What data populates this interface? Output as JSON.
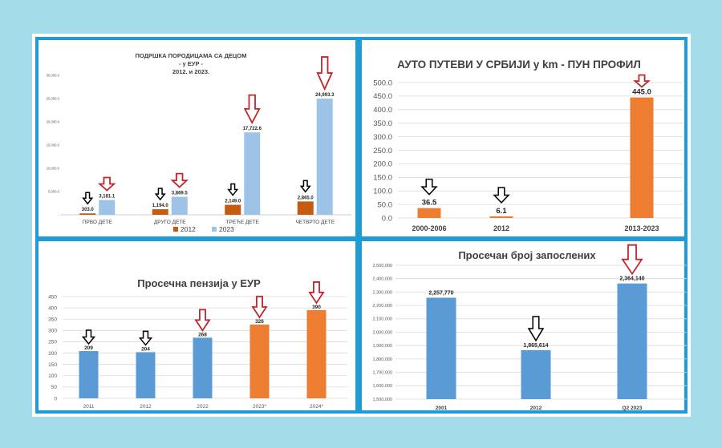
{
  "colors": {
    "background": "#a5dcea",
    "border": "#1f9bd8",
    "bar_blue": "#5b9bd5",
    "bar_light_blue": "#9dc3e6",
    "bar_orange": "#ed7d31",
    "bar_dark_orange": "#c55a11",
    "arrow_red": "#c0272d",
    "arrow_black": "#000000"
  },
  "chart_data": [
    {
      "id": "family-support",
      "type": "bar",
      "title": "ПОДРШКА ПОРОДИЦАМА СА ДЕЦОМ\n- у ЕУР -\n2012. и 2023.",
      "categories": [
        "ПРВО ДЕТЕ",
        "ДРУГО ДЕТЕ",
        "ТРЕЋЕ ДЕТЕ",
        "ЧЕТВРТО ДЕТЕ"
      ],
      "series": [
        {
          "name": "2012",
          "values": [
            303.0,
            1194.0,
            2149.0,
            2865.0
          ],
          "labels": [
            "303.0",
            "1,194.0",
            "2,149.0",
            "2,865.0"
          ],
          "color": "#c55a11",
          "arrow": "black"
        },
        {
          "name": "2023",
          "values": [
            3181.1,
            3869.5,
            17722.6,
            24993.3
          ],
          "labels": [
            "3,181.1",
            "3,869.5",
            "17,722.6",
            "24,993.3"
          ],
          "color": "#9dc3e6",
          "arrow": "red"
        }
      ],
      "ylim": [
        0,
        30000
      ],
      "yticks": [
        0,
        5000,
        10000,
        15000,
        20000,
        25000,
        30000
      ],
      "ytick_labels": [
        "-",
        "5,000.0",
        "10,000.0",
        "15,000.0",
        "20,000.0",
        "25,000.0",
        "30,000.0"
      ],
      "legend": "bottom",
      "grid": false
    },
    {
      "id": "highways",
      "type": "bar",
      "title": "АУТО ПУТЕВИ У СРБИЈИ у km - ПУН ПРОФИЛ",
      "categories": [
        "2000-2006",
        "2012",
        "2013-2023"
      ],
      "values": [
        36.5,
        6.1,
        445.0
      ],
      "labels": [
        "36.5",
        "6.1",
        "445.0"
      ],
      "color": "#ed7d31",
      "arrows": [
        "black",
        "black",
        "red"
      ],
      "ylim": [
        0,
        500
      ],
      "yticks": [
        0,
        50,
        100,
        150,
        200,
        250,
        300,
        350,
        400,
        450,
        500
      ],
      "ytick_labels": [
        "0.0",
        "50.0",
        "100.0",
        "150.0",
        "200.0",
        "250.0",
        "300.0",
        "350.0",
        "400.0",
        "450.0",
        "500.0"
      ],
      "grid": true
    },
    {
      "id": "pension",
      "type": "bar",
      "title": "Просечна пензија у ЕУР",
      "categories": [
        "2011",
        "2012",
        "2022",
        "2023*",
        "2024*"
      ],
      "values": [
        209,
        204,
        268,
        326,
        390
      ],
      "labels": [
        "209",
        "204",
        "268",
        "326",
        "390"
      ],
      "colors": [
        "#5b9bd5",
        "#5b9bd5",
        "#5b9bd5",
        "#ed7d31",
        "#ed7d31"
      ],
      "arrows": [
        "black",
        "black",
        "red",
        "red",
        "red"
      ],
      "ylim": [
        0,
        450
      ],
      "yticks": [
        0,
        50,
        100,
        150,
        200,
        250,
        300,
        350,
        400,
        450
      ],
      "ytick_labels": [
        "0",
        "50",
        "100",
        "150",
        "200",
        "250",
        "300",
        "350",
        "400",
        "450"
      ],
      "grid": true
    },
    {
      "id": "employees",
      "type": "bar",
      "title": "Просечан број запослених",
      "categories": [
        "2001",
        "2012",
        "Q2 2023"
      ],
      "values": [
        2257770,
        1865614,
        2364140
      ],
      "labels": [
        "2,257,770",
        "1,865,614",
        "2,364,140"
      ],
      "color": "#5b9bd5",
      "arrows": [
        "none",
        "black",
        "red"
      ],
      "ylim": [
        1500000,
        2500000
      ],
      "yticks": [
        1500000,
        1600000,
        1700000,
        1800000,
        1900000,
        2000000,
        2100000,
        2200000,
        2300000,
        2400000,
        2500000
      ],
      "ytick_labels": [
        "1,500,000",
        "1,600,000",
        "1,700,000",
        "1,800,000",
        "1,900,000",
        "2,000,000",
        "2,100,000",
        "2,200,000",
        "2,300,000",
        "2,400,000",
        "2,500,000"
      ],
      "grid": true
    }
  ]
}
